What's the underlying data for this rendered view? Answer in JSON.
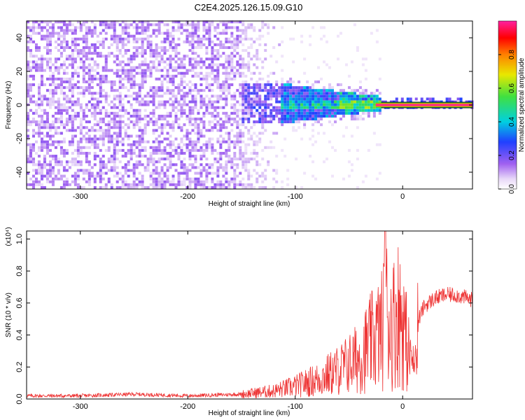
{
  "title": "C2E4.2025.126.15.09.G10",
  "chart_data": [
    {
      "type": "heatmap",
      "title": "C2E4.2025.126.15.09.G10",
      "xlabel": "Height of straight line (km)",
      "ylabel": "Frequency (Hz)",
      "xlim": [
        -350,
        65
      ],
      "ylim": [
        -50,
        50
      ],
      "xticks": [
        -300,
        -200,
        -100,
        0
      ],
      "yticks": [
        -40,
        -20,
        0,
        20,
        40
      ],
      "colorbar": {
        "label": "Normalized spectral amplitude",
        "range": [
          0,
          1
        ],
        "ticks": [
          0.0,
          0.2,
          0.4,
          0.6,
          0.8
        ],
        "colormap": "rainbow (purple-blue-cyan-green-yellow-red-magenta)"
      },
      "description_regions": [
        {
          "x_range": [
            -350,
            -150
          ],
          "freq_range": [
            -50,
            50
          ],
          "amplitude": 0.1
        },
        {
          "x_range": [
            -150,
            -20
          ],
          "freq_range": [
            -10,
            10
          ],
          "amplitude": 0.3
        },
        {
          "x_range": [
            -20,
            65
          ],
          "freq_range": [
            -1,
            1
          ],
          "amplitude": 0.95
        }
      ]
    },
    {
      "type": "line",
      "xlabel": "Height of straight line (km)",
      "ylabel": "SNR (10 * v/v)",
      "y_multiplier": "(x10⁴)",
      "xlim": [
        -350,
        65
      ],
      "ylim": [
        0,
        1.05
      ],
      "xticks": [
        -300,
        -200,
        -100,
        0
      ],
      "yticks": [
        0.0,
        0.2,
        0.4,
        0.6,
        0.8,
        1.0
      ],
      "color": "#ee3333",
      "series": [
        {
          "x": [
            -350,
            -300,
            -250,
            -200,
            -150,
            -120,
            -100,
            -80,
            -60,
            -40,
            -30,
            -20,
            -15,
            -10,
            -5,
            0,
            5,
            10,
            15,
            20,
            30,
            40,
            50,
            65
          ],
          "y": [
            0.02,
            0.02,
            0.03,
            0.02,
            0.03,
            0.05,
            0.08,
            0.12,
            0.18,
            0.26,
            0.35,
            0.42,
            0.55,
            0.45,
            0.55,
            0.5,
            0.3,
            0.2,
            0.5,
            0.58,
            0.63,
            0.65,
            0.65,
            0.62
          ]
        }
      ]
    }
  ]
}
